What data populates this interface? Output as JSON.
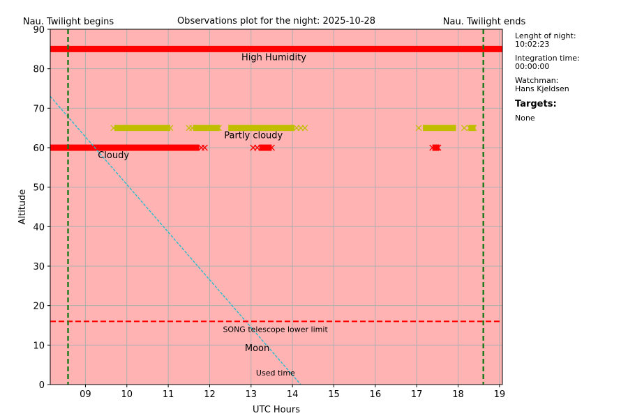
{
  "colors": {
    "background": "#ffb3b3",
    "grid": "#b0b0b0",
    "twilight_line": "#1a7a1a",
    "weather_bad": "#ff0000",
    "weather_partly": "#bfbf00",
    "moon": "#17becf",
    "limit": "#ff0000"
  },
  "chart_data": {
    "type": "scatter",
    "title": "Observations plot for the night: 2025-10-28",
    "xlabel": "UTC Hours",
    "ylabel": "Altitude",
    "xlim": [
      8.15,
      19.07
    ],
    "ylim": [
      0,
      90
    ],
    "x_ticks": [
      9,
      10,
      11,
      12,
      13,
      14,
      15,
      16,
      17,
      18,
      19
    ],
    "x_tick_labels": [
      "09",
      "10",
      "11",
      "12",
      "13",
      "14",
      "15",
      "16",
      "17",
      "18",
      "19"
    ],
    "y_ticks": [
      0,
      10,
      20,
      30,
      40,
      50,
      60,
      70,
      80,
      90
    ],
    "grid": true,
    "twilight": {
      "begin_x": 8.58,
      "end_x": 18.61,
      "begin_label": "Nau. Twilight begins",
      "end_label": "Nau. Twilight ends"
    },
    "high_humidity": {
      "label": "High Humidity",
      "y": 85,
      "x_start": 8.15,
      "x_end": 19.07
    },
    "cloudy": {
      "label": "Cloudy",
      "y": 60,
      "segments": [
        [
          8.15,
          11.75
        ],
        [
          13.2,
          13.5
        ],
        [
          17.38,
          17.55
        ]
      ],
      "markers": [
        11.8,
        11.88,
        13.05,
        13.15,
        13.25,
        13.4,
        13.5,
        17.38,
        17.45,
        17.52
      ]
    },
    "partly_cloudy": {
      "label": "Partly cloudy",
      "y": 65,
      "segments": [
        [
          9.7,
          11.05
        ],
        [
          11.6,
          12.25
        ],
        [
          12.45,
          14.05
        ],
        [
          17.15,
          17.95
        ],
        [
          18.25,
          18.42
        ]
      ],
      "markers": [
        9.68,
        9.78,
        9.9,
        10.02,
        10.95,
        11.05,
        11.5,
        11.58,
        12.22,
        14.1,
        14.2,
        14.3,
        17.05,
        18.15,
        18.28,
        18.38
      ]
    },
    "moon": {
      "label": "Moon",
      "points": [
        [
          8.15,
          73
        ],
        [
          14.2,
          0
        ]
      ]
    },
    "lower_limit": {
      "label": "SONG telescope lower limit",
      "y": 16
    },
    "used_time_label": "Used time"
  },
  "sidebar": {
    "night_length_label": "Lenght of night:",
    "night_length_value": "10:02:23",
    "integration_label": "Integration time:",
    "integration_value": "00:00:00",
    "watchman_label": "Watchman:",
    "watchman_value": "Hans Kjeldsen",
    "targets_title": "Targets:",
    "targets_value": "None"
  }
}
